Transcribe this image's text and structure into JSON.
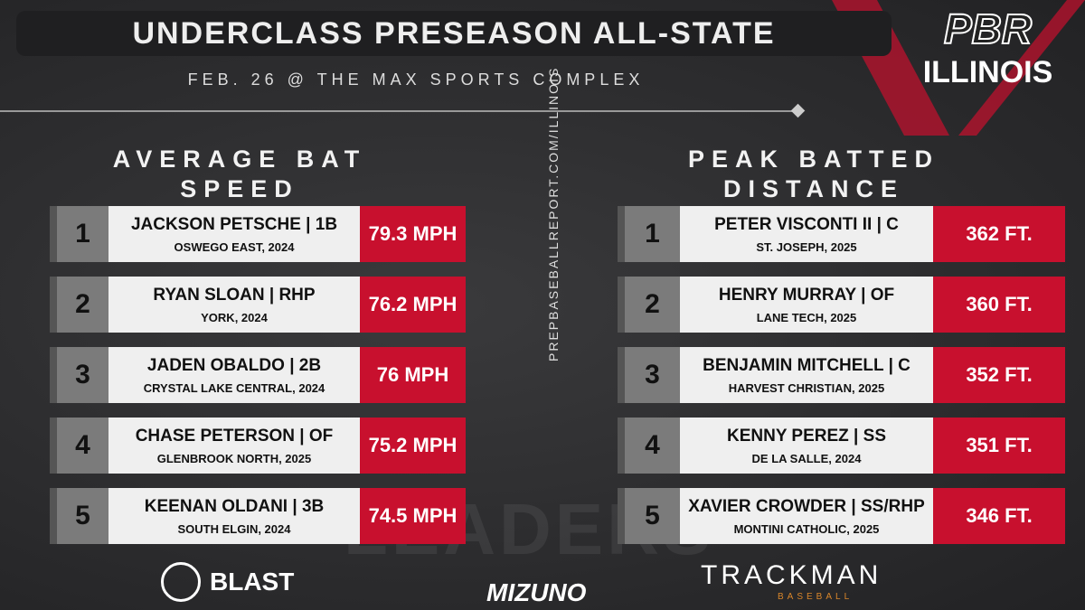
{
  "header": {
    "title": "UNDERCLASS PRESEASON ALL-STATE",
    "subtitle": "FEB. 26 @ THE MAX SPORTS COMPLEX"
  },
  "logo": {
    "top": "PBR",
    "bottom": "ILLINOIS"
  },
  "website": "PREPBASEBALLREPORT.COM/ILLINOIS",
  "watermark": "LEADERS",
  "sections": [
    {
      "heading": "AVERAGE BAT SPEED",
      "rows": [
        {
          "rank": "1",
          "name": "JACKSON PETSCHE | 1B",
          "school": "OSWEGO EAST, 2024",
          "value": "79.3 MPH"
        },
        {
          "rank": "2",
          "name": "RYAN SLOAN | RHP",
          "school": "YORK, 2024",
          "value": "76.2 MPH"
        },
        {
          "rank": "3",
          "name": "JADEN OBALDO | 2B",
          "school": "CRYSTAL LAKE CENTRAL, 2024",
          "value": "76 MPH"
        },
        {
          "rank": "4",
          "name": "CHASE PETERSON | OF",
          "school": "GLENBROOK NORTH, 2025",
          "value": "75.2 MPH"
        },
        {
          "rank": "5",
          "name": "KEENAN OLDANI | 3B",
          "school": "SOUTH ELGIN, 2024",
          "value": "74.5 MPH"
        }
      ]
    },
    {
      "heading": "PEAK BATTED DISTANCE",
      "rows": [
        {
          "rank": "1",
          "name": "PETER VISCONTI II | C",
          "school": "ST. JOSEPH, 2025",
          "value": "362 FT."
        },
        {
          "rank": "2",
          "name": "HENRY MURRAY | OF",
          "school": "LANE TECH, 2025",
          "value": "360 FT."
        },
        {
          "rank": "3",
          "name": "BENJAMIN MITCHELL | C",
          "school": "HARVEST CHRISTIAN, 2025",
          "value": "352 FT."
        },
        {
          "rank": "4",
          "name": "KENNY PEREZ | SS",
          "school": "DE LA SALLE, 2024",
          "value": "351 FT."
        },
        {
          "rank": "5",
          "name": "XAVIER CROWDER | SS/RHP",
          "school": "MONTINI CATHOLIC, 2025",
          "value": "346 FT."
        }
      ]
    }
  ],
  "sponsors": {
    "blast": "BLAST",
    "mizuno": "MIZUNO",
    "trackman": "TRACKMAN",
    "trackman_sub": "BASEBALL"
  }
}
